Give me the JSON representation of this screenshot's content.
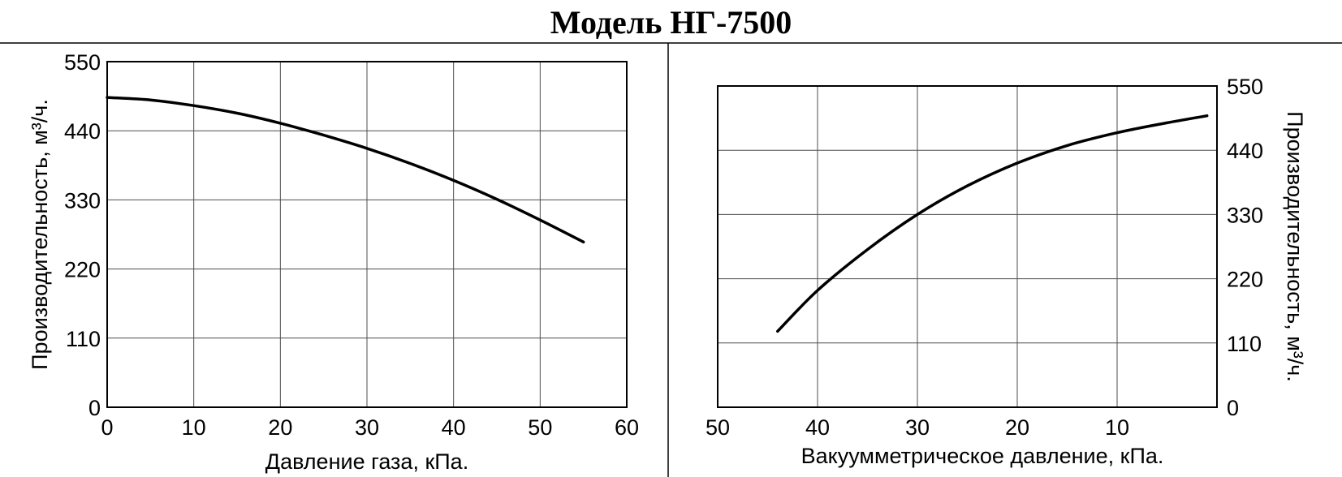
{
  "title": "Модель НГ-7500",
  "chart_data": [
    {
      "type": "line",
      "xlabel": "Давление газа, кПа.",
      "ylabel": "Производительность, м³/ч.",
      "xlim": [
        0,
        60
      ],
      "ylim": [
        0,
        550
      ],
      "x_ticks": [
        "0",
        "10",
        "20",
        "30",
        "40",
        "50",
        "60"
      ],
      "y_ticks": [
        "0",
        "110",
        "220",
        "330",
        "440",
        "550"
      ],
      "y_axis_side": "left",
      "x_direction": "ascending",
      "grid": true,
      "series": [
        {
          "x": [
            0,
            5,
            10,
            15,
            20,
            25,
            30,
            35,
            40,
            45,
            50,
            55
          ],
          "y": [
            493,
            489,
            480,
            468,
            452,
            433,
            412,
            388,
            361,
            331,
            298,
            263
          ]
        }
      ]
    },
    {
      "type": "line",
      "xlabel": "Вакуумметрическое давление, кПа.",
      "ylabel": "Производительность, м³/ч.",
      "xlim": [
        50,
        0
      ],
      "ylim": [
        0,
        550
      ],
      "x_ticks": [
        "50",
        "40",
        "30",
        "20",
        "10"
      ],
      "y_ticks": [
        "0",
        "110",
        "220",
        "330",
        "440",
        "550"
      ],
      "y_axis_side": "right",
      "x_direction": "descending",
      "grid": true,
      "series": [
        {
          "x": [
            44,
            40,
            35,
            30,
            25,
            20,
            15,
            10,
            5,
            1
          ],
          "y": [
            130,
            200,
            270,
            330,
            379,
            418,
            448,
            470,
            487,
            499
          ]
        }
      ]
    }
  ]
}
